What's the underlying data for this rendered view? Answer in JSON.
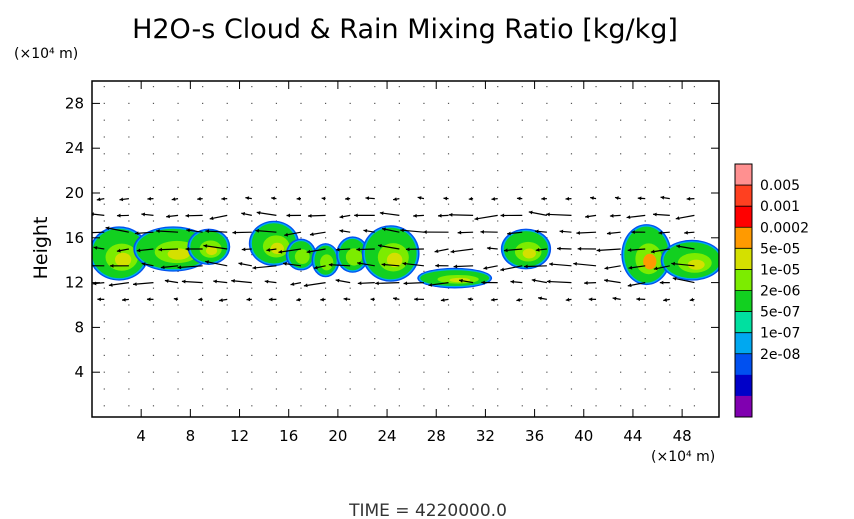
{
  "chart_data": {
    "type": "heatmap",
    "title": "H2O-s Cloud & Rain Mixing Ratio [kg/kg]",
    "ylabel": "Height",
    "y_unit": "(×10⁴ m)",
    "x_unit": "(×10⁴ m)",
    "xlim": [
      0,
      51
    ],
    "ylim": [
      0,
      30
    ],
    "x_ticks": [
      4,
      8,
      12,
      16,
      20,
      24,
      28,
      32,
      36,
      40,
      44,
      48
    ],
    "y_ticks": [
      4,
      8,
      12,
      16,
      20,
      24,
      28
    ],
    "footer": "TIME  =  4220000.0",
    "colorbar": {
      "labels": [
        "0.005",
        "0.001",
        "0.0002",
        "5e-05",
        "1e-05",
        "2e-06",
        "5e-07",
        "1e-07",
        "2e-08"
      ],
      "colors": [
        "#ff9090",
        "#ff4020",
        "#ff0000",
        "#ff9a00",
        "#d4e000",
        "#7cec00",
        "#12d020",
        "#00e0a0",
        "#00a8f0",
        "#0050f0",
        "#0000c8",
        "#8000b0"
      ]
    },
    "cloud_blobs": [
      {
        "x": 2.2,
        "y": 14.6,
        "rx": 2.2,
        "ry": 2.2,
        "value": "1e-05",
        "core": "5e-05"
      },
      {
        "x": 6.6,
        "y": 15.0,
        "rx": 3.0,
        "ry": 1.8,
        "value": "1e-05",
        "core": "5e-05"
      },
      {
        "x": 9.5,
        "y": 15.2,
        "rx": 1.5,
        "ry": 1.4,
        "value": "5e-05",
        "core": "5e-05"
      },
      {
        "x": 14.8,
        "y": 15.5,
        "rx": 1.8,
        "ry": 1.8,
        "value": "1e-05",
        "core": "5e-05"
      },
      {
        "x": 17.0,
        "y": 14.5,
        "rx": 1.0,
        "ry": 1.2,
        "value": "2e-06",
        "core": "1e-05"
      },
      {
        "x": 19.0,
        "y": 14.0,
        "rx": 0.9,
        "ry": 1.3,
        "value": "2e-06",
        "core": "1e-05"
      },
      {
        "x": 21.2,
        "y": 14.5,
        "rx": 1.1,
        "ry": 1.4,
        "value": "2e-06",
        "core": "1e-05"
      },
      {
        "x": 24.3,
        "y": 14.6,
        "rx": 2.1,
        "ry": 2.3,
        "value": "1e-05",
        "core": "5e-05"
      },
      {
        "x": 29.5,
        "y": 12.4,
        "rx": 2.8,
        "ry": 0.7,
        "value": "1e-05",
        "core": "5e-05"
      },
      {
        "x": 35.3,
        "y": 15.0,
        "rx": 1.8,
        "ry": 1.6,
        "value": "1e-05",
        "core": "5e-05"
      },
      {
        "x": 45.1,
        "y": 14.5,
        "rx": 1.8,
        "ry": 2.5,
        "value": "1e-05",
        "core": "0.0002"
      },
      {
        "x": 48.8,
        "y": 14.0,
        "rx": 2.3,
        "ry": 1.6,
        "value": "1e-05",
        "core": "5e-05"
      }
    ]
  }
}
